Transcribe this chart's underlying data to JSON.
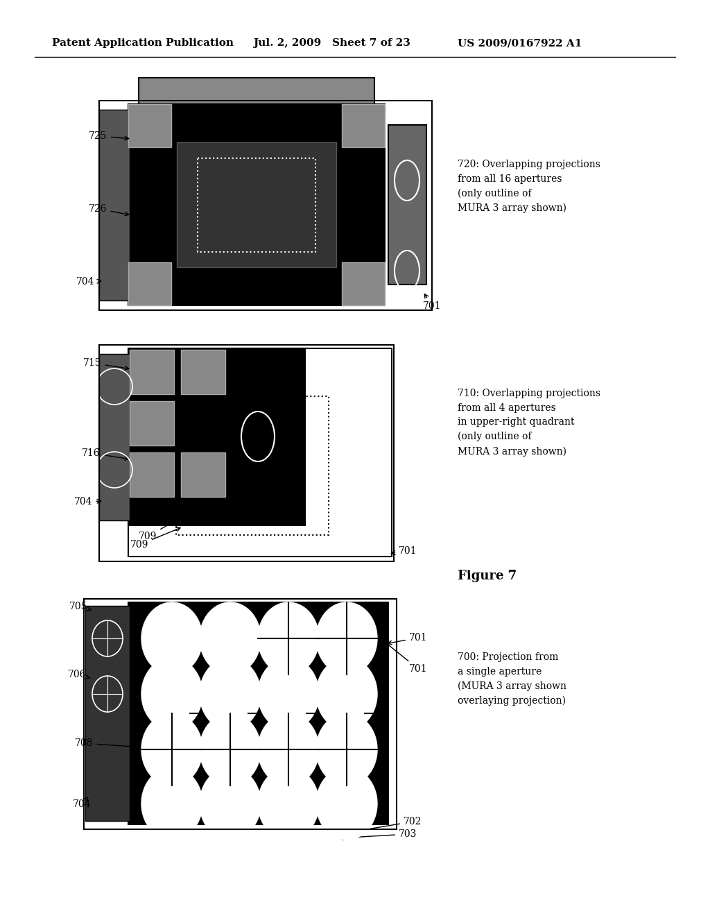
{
  "bg_color": "#ffffff",
  "header_left": "Patent Application Publication",
  "header_mid": "Jul. 2, 2009   Sheet 7 of 23",
  "header_right": "US 2009/0167922 A1",
  "figure_label": "Figure 7",
  "diagram1_label": "700: Projection from\na single aperture\n(MURA 3 array shown\noverlaying projection)",
  "diagram2_label": "710: Overlapping projections\nfrom all 4 apertures\nin upper-right quadrant\n(only outline of\nMURA 3 array shown)",
  "diagram3_label": "720: Overlapping projections\nfrom all 16 apertures\n(only outline of\nMURA 3 array shown)"
}
